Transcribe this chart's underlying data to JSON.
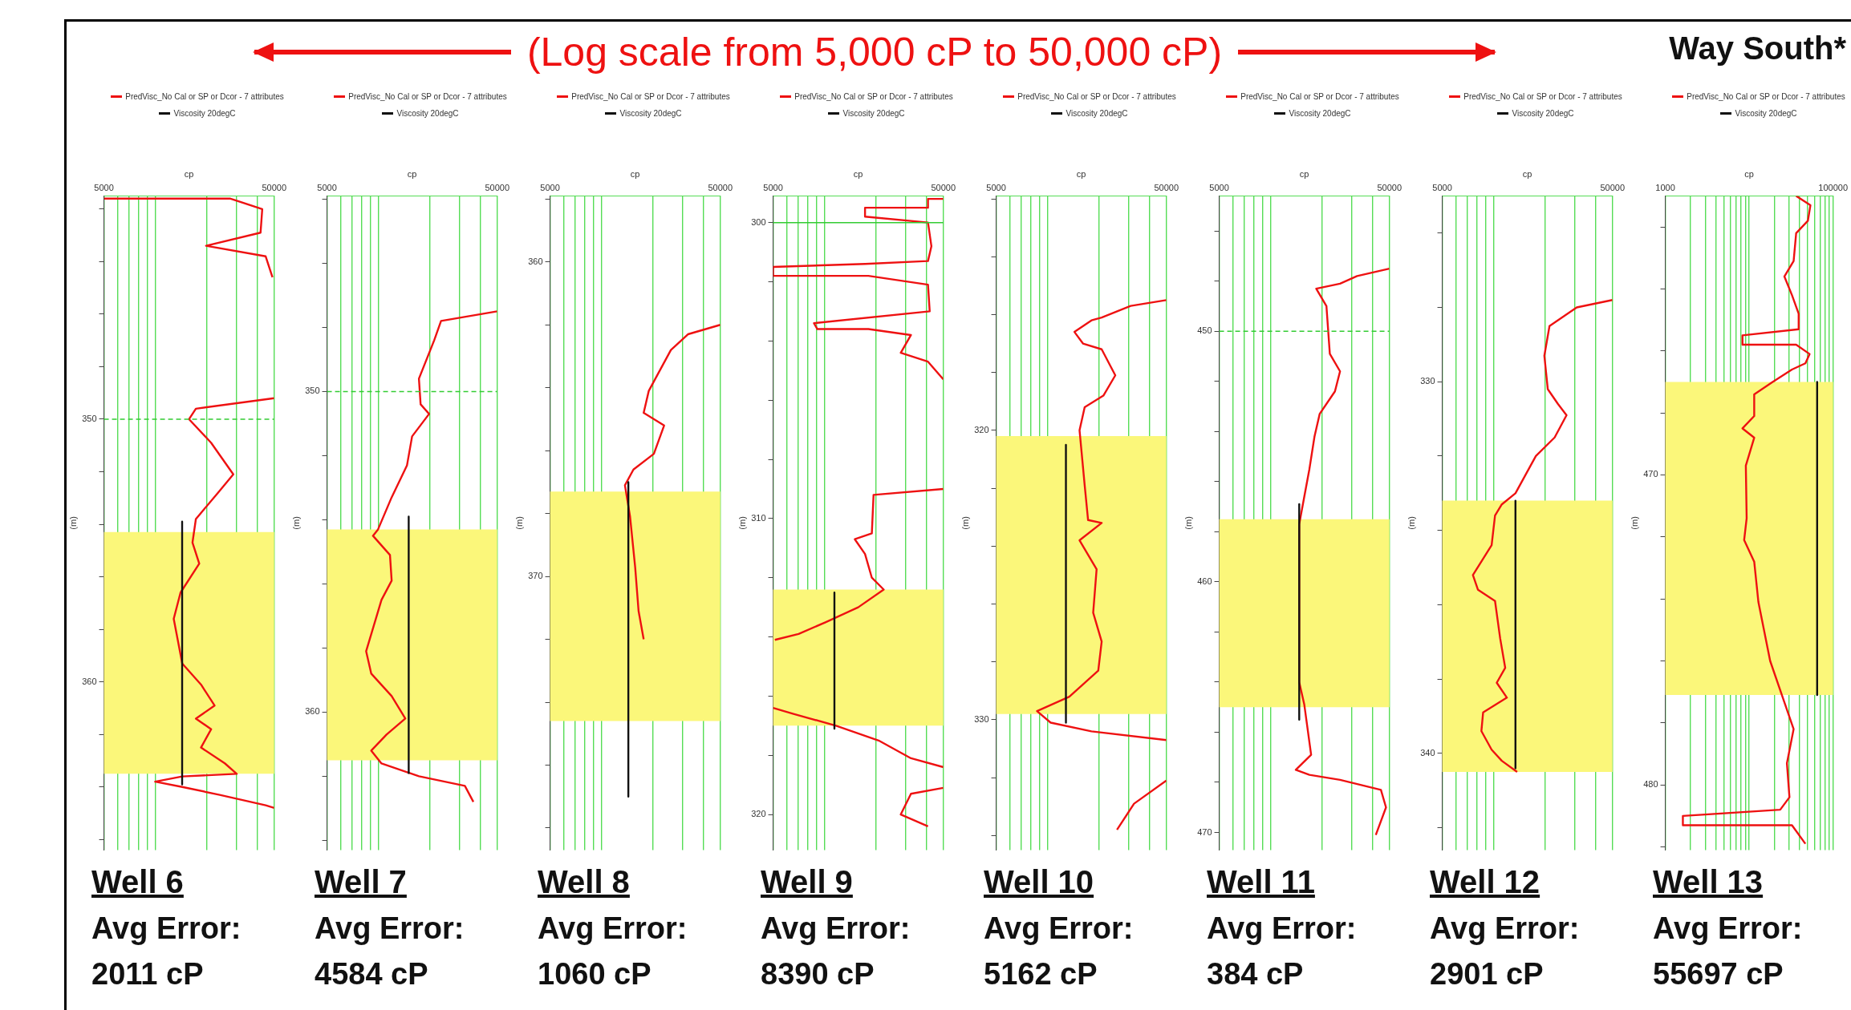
{
  "chart_data": [
    {
      "type": "line",
      "title": "Well 6",
      "annotations": [
        "Avg Error:",
        "2011 cP",
        "(Log scale from 5,000 cP to 50,000 cP)"
      ],
      "xlabel": "cp",
      "ylabel": "(m)",
      "log": "x",
      "grid": "x",
      "legend": "top",
      "marker": "none",
      "xlim": [
        5000,
        50000
      ],
      "xticks": [
        5000,
        {
          "value": 6000,
          "label": null
        },
        {
          "value": 7000,
          "label": null
        },
        {
          "value": 8000,
          "label": null
        },
        {
          "value": 9000,
          "label": null
        },
        {
          "value": 10000,
          "label": null
        },
        {
          "value": 20000,
          "label": null
        },
        {
          "value": 30000,
          "label": null
        },
        {
          "value": 40000,
          "label": null
        },
        50000
      ],
      "ylim": [
        366.4,
        341.5
      ],
      "yticks": [
        {
          "value": 342,
          "label": null
        },
        {
          "value": 344,
          "label": null
        },
        {
          "value": 346,
          "label": null
        },
        {
          "value": 348,
          "label": null
        },
        350,
        {
          "value": 352,
          "label": null
        },
        {
          "value": 354,
          "label": null
        },
        {
          "value": 356,
          "label": null
        },
        {
          "value": 358,
          "label": null
        },
        360,
        {
          "value": 362,
          "label": null
        },
        {
          "value": 364,
          "label": null
        },
        {
          "value": 366,
          "label": null
        }
      ],
      "bands": [
        {
          "axis": "y",
          "from": 354.3,
          "to": 363.5,
          "color": "#fbf77a"
        }
      ],
      "ref_lines": [
        {
          "axis": "y",
          "value": 350,
          "color": "#33cc33",
          "line_style": "dashed"
        }
      ],
      "series": [
        {
          "name": "PredVisc_No Cal or SP or Dcor - 7 attributes",
          "color": "#ee1111",
          "x": [
            5000,
            27480,
            42560,
            41590,
            19900,
            44570,
            48870,
            null,
            50000,
            17340,
            15810,
            21330,
            28770,
            23390,
            17340,
            16560,
            18150,
            14090,
            12850,
            14420,
            18580,
            22330,
            17340,
            21330,
            18580,
            25640,
            30130,
            14420,
            10000,
            14420,
            23930,
            44570,
            50000
          ],
          "values": [
            341.6,
            341.6,
            342.0,
            342.9,
            343.4,
            343.8,
            344.6,
            null,
            349.2,
            349.6,
            350.0,
            350.9,
            352.1,
            352.8,
            353.8,
            354.7,
            355.5,
            356.6,
            357.6,
            359.3,
            360.1,
            360.9,
            361.4,
            361.8,
            362.5,
            363.1,
            363.5,
            363.6,
            363.8,
            364.0,
            364.3,
            364.7,
            364.8
          ]
        },
        {
          "name": "Viscosity 20degC",
          "color": "#111111",
          "x": [
            14400,
            14400
          ],
          "values": [
            353.9,
            363.9
          ]
        }
      ]
    },
    {
      "type": "line",
      "title": "Well 7",
      "annotations": [
        "Avg Error:",
        "4584 cP"
      ],
      "xlabel": "cp",
      "ylabel": "(m)",
      "log": "x",
      "grid": "x",
      "legend": "top",
      "marker": "none",
      "xlim": [
        5000,
        50000
      ],
      "xticks": [
        5000,
        {
          "value": 6000,
          "label": null
        },
        {
          "value": 7000,
          "label": null
        },
        {
          "value": 8000,
          "label": null
        },
        {
          "value": 9000,
          "label": null
        },
        {
          "value": 10000,
          "label": null
        },
        {
          "value": 20000,
          "label": null
        },
        {
          "value": 30000,
          "label": null
        },
        {
          "value": 40000,
          "label": null
        },
        50000
      ],
      "ylim": [
        364.3,
        343.9
      ],
      "yticks": [
        {
          "value": 344,
          "label": null
        },
        {
          "value": 346,
          "label": null
        },
        {
          "value": 348,
          "label": null
        },
        350,
        {
          "value": 352,
          "label": null
        },
        {
          "value": 354,
          "label": null
        },
        {
          "value": 356,
          "label": null
        },
        {
          "value": 358,
          "label": null
        },
        360,
        {
          "value": 362,
          "label": null
        },
        {
          "value": 364,
          "label": null
        }
      ],
      "bands": [
        {
          "axis": "y",
          "from": 354.3,
          "to": 361.5,
          "color": "#fbf77a"
        }
      ],
      "ref_lines": [
        {
          "axis": "y",
          "value": 350,
          "color": "#33cc33",
          "line_style": "dashed"
        }
      ],
      "series": [
        {
          "name": "PredVisc_No Cal or SP or Dcor - 7 attributes",
          "color": "#ee1111",
          "x": [
            50000,
            23390,
            21330,
            17340,
            17740,
            19900,
            15810,
            14760,
            11990,
            9976,
            9310,
            11720,
            11990,
            10450,
            8490,
            9100,
            11990,
            14420,
            11190,
            9100,
            10450,
            17340,
            32280,
            36220
          ],
          "values": [
            347.5,
            347.8,
            348.4,
            349.6,
            350.4,
            350.7,
            351.4,
            352.3,
            353.3,
            354.3,
            354.5,
            355.1,
            355.9,
            356.5,
            358.1,
            358.8,
            359.5,
            360.2,
            360.7,
            361.2,
            361.6,
            362.0,
            362.3,
            362.8
          ]
        },
        {
          "name": "Viscosity 20degC",
          "color": "#111111",
          "x": [
            15100,
            15100
          ],
          "values": [
            353.9,
            361.9
          ]
        }
      ]
    },
    {
      "type": "line",
      "title": "Well 8",
      "annotations": [
        "Avg Error:",
        "1060 cP"
      ],
      "xlabel": "cp",
      "ylabel": "(m)",
      "log": "x",
      "grid": "x",
      "legend": "top",
      "marker": "none",
      "xlim": [
        5000,
        50000
      ],
      "xticks": [
        5000,
        {
          "value": 6000,
          "label": null
        },
        {
          "value": 7000,
          "label": null
        },
        {
          "value": 8000,
          "label": null
        },
        {
          "value": 9000,
          "label": null
        },
        {
          "value": 10000,
          "label": null
        },
        {
          "value": 20000,
          "label": null
        },
        {
          "value": 30000,
          "label": null
        },
        {
          "value": 40000,
          "label": null
        },
        50000
      ],
      "ylim": [
        378.7,
        357.9
      ],
      "yticks": [
        {
          "value": 358,
          "label": null
        },
        360,
        {
          "value": 362,
          "label": null
        },
        {
          "value": 364,
          "label": null
        },
        {
          "value": 366,
          "label": null
        },
        {
          "value": 368,
          "label": null
        },
        370,
        {
          "value": 372,
          "label": null
        },
        {
          "value": 374,
          "label": null
        },
        {
          "value": 376,
          "label": null
        },
        {
          "value": 378,
          "label": null
        }
      ],
      "bands": [
        {
          "axis": "y",
          "from": 367.3,
          "to": 374.6,
          "color": "#fbf77a"
        }
      ],
      "series": [
        {
          "name": "PredVisc_No Cal or SP or Dcor - 7 attributes",
          "color": "#ee1111",
          "x": [
            50000,
            32280,
            25640,
            19010,
            17740,
            23390,
            20370,
            15450,
            13770,
            14760,
            15810,
            16560,
            17740
          ],
          "values": [
            362.0,
            362.3,
            362.8,
            364.1,
            364.8,
            365.2,
            366.1,
            366.6,
            367.1,
            368.1,
            369.7,
            371.1,
            372.0
          ]
        },
        {
          "name": "Viscosity 20degC",
          "color": "#111111",
          "x": [
            14420,
            14420
          ],
          "values": [
            367.0,
            377.0
          ]
        }
      ]
    },
    {
      "type": "line",
      "title": "Well 9",
      "annotations": [
        "Avg Error:",
        "8390 cP"
      ],
      "xlabel": "cp",
      "ylabel": "(m)",
      "log": "x",
      "grid": "x",
      "legend": "top",
      "marker": "none",
      "xlim": [
        5000,
        50000
      ],
      "xticks": [
        5000,
        {
          "value": 6000,
          "label": null
        },
        {
          "value": 7000,
          "label": null
        },
        {
          "value": 8000,
          "label": null
        },
        {
          "value": 9000,
          "label": null
        },
        {
          "value": 10000,
          "label": null
        },
        {
          "value": 20000,
          "label": null
        },
        {
          "value": 30000,
          "label": null
        },
        {
          "value": 40000,
          "label": null
        },
        50000
      ],
      "ylim": [
        321.2,
        299.1
      ],
      "yticks": [
        300,
        {
          "value": 302,
          "label": null
        },
        {
          "value": 304,
          "label": null
        },
        {
          "value": 306,
          "label": null
        },
        {
          "value": 308,
          "label": null
        },
        310,
        {
          "value": 312,
          "label": null
        },
        {
          "value": 314,
          "label": null
        },
        {
          "value": 316,
          "label": null
        },
        {
          "value": 318,
          "label": null
        },
        320
      ],
      "bands": [
        {
          "axis": "y",
          "from": 312.4,
          "to": 317.0,
          "color": "#fbf77a"
        }
      ],
      "ref_lines": [
        {
          "axis": "y",
          "value": 300,
          "color": "#33cc33",
          "line_style": "solid"
        }
      ],
      "series": [
        {
          "name": "PredVisc_No Cal or SP or Dcor - 7 attributes",
          "color": "#ee1111",
          "x": [
            50000,
            40640,
            40640,
            17340,
            17340,
            40640,
            42560,
            40640,
            17340,
            5000,
            5000,
            18150,
            40640,
            41590,
            8690,
            9100,
            18150,
            32280,
            28120,
            40640,
            50000,
            null,
            50000,
            19460,
            19010,
            15100,
            17340,
            19010,
            22330,
            15810,
            10210,
            7060,
            5120,
            null,
            5000,
            6590,
            11720,
            20840,
            32280,
            50000,
            null,
            50000,
            32280,
            28120,
            40640
          ],
          "values": [
            299.2,
            299.2,
            299.5,
            299.5,
            299.8,
            300.0,
            300.8,
            301.3,
            301.4,
            301.5,
            301.8,
            301.8,
            302.1,
            303.0,
            303.4,
            303.6,
            303.6,
            303.8,
            304.4,
            304.7,
            305.3,
            null,
            309.0,
            309.2,
            310.5,
            310.7,
            311.2,
            312.0,
            312.4,
            313.0,
            313.5,
            313.9,
            314.1,
            null,
            316.4,
            316.6,
            317.0,
            317.5,
            318.1,
            318.4,
            null,
            319.1,
            319.3,
            320.0,
            320.4
          ]
        },
        {
          "name": "Viscosity 20degC",
          "color": "#111111",
          "x": [
            11460,
            11460
          ],
          "values": [
            312.5,
            317.1
          ]
        }
      ]
    },
    {
      "type": "line",
      "title": "Well 10",
      "annotations": [
        "Avg Error:",
        "5162 cP"
      ],
      "xlabel": "cp",
      "ylabel": "(m)",
      "log": "x",
      "grid": "x",
      "legend": "top",
      "marker": "none",
      "xlim": [
        5000,
        50000
      ],
      "xticks": [
        5000,
        {
          "value": 6000,
          "label": null
        },
        {
          "value": 7000,
          "label": null
        },
        {
          "value": 8000,
          "label": null
        },
        {
          "value": 9000,
          "label": null
        },
        {
          "value": 10000,
          "label": null
        },
        {
          "value": 20000,
          "label": null
        },
        {
          "value": 30000,
          "label": null
        },
        {
          "value": 40000,
          "label": null
        },
        50000
      ],
      "ylim": [
        334.5,
        311.9
      ],
      "yticks": [
        {
          "value": 312,
          "label": null
        },
        {
          "value": 314,
          "label": null
        },
        {
          "value": 316,
          "label": null
        },
        {
          "value": 318,
          "label": null
        },
        320,
        {
          "value": 322,
          "label": null
        },
        {
          "value": 324,
          "label": null
        },
        {
          "value": 326,
          "label": null
        },
        {
          "value": 328,
          "label": null
        },
        330,
        {
          "value": 332,
          "label": null
        },
        {
          "value": 334,
          "label": null
        }
      ],
      "bands": [
        {
          "axis": "y",
          "from": 320.2,
          "to": 329.8,
          "color": "#fbf77a"
        }
      ],
      "series": [
        {
          "name": "PredVisc_No Cal or SP or Dcor - 7 attributes",
          "color": "#ee1111",
          "x": [
            50000,
            30840,
            20840,
            18150,
            14420,
            16180,
            20840,
            25060,
            21330,
            16560,
            15450,
            16560,
            17340,
            20840,
            15450,
            19460,
            18580,
            20840,
            19900,
            13460,
            8690,
            10450,
            18150,
            50000,
            null,
            50000,
            32280,
            25640
          ],
          "values": [
            315.5,
            315.7,
            316.1,
            316.2,
            316.6,
            317.0,
            317.2,
            318.1,
            318.8,
            319.2,
            320.0,
            321.9,
            323.1,
            323.2,
            323.8,
            324.8,
            326.3,
            327.3,
            328.3,
            329.2,
            329.7,
            330.1,
            330.4,
            330.7,
            null,
            332.1,
            332.9,
            333.8
          ]
        },
        {
          "name": "Viscosity 20degC",
          "color": "#111111",
          "x": [
            12850,
            12850
          ],
          "values": [
            320.5,
            330.1
          ]
        }
      ]
    },
    {
      "type": "line",
      "title": "Well 11",
      "annotations": [
        "Avg Error:",
        "384 cP"
      ],
      "xlabel": "cp",
      "ylabel": "(m)",
      "log": "x",
      "grid": "x",
      "legend": "top",
      "marker": "none",
      "xlim": [
        5000,
        50000
      ],
      "xticks": [
        5000,
        {
          "value": 6000,
          "label": null
        },
        {
          "value": 7000,
          "label": null
        },
        {
          "value": 8000,
          "label": null
        },
        {
          "value": 9000,
          "label": null
        },
        {
          "value": 10000,
          "label": null
        },
        {
          "value": 20000,
          "label": null
        },
        {
          "value": 30000,
          "label": null
        },
        {
          "value": 40000,
          "label": null
        },
        50000
      ],
      "ylim": [
        470.7,
        444.6
      ],
      "yticks": [
        {
          "value": 446,
          "label": null
        },
        {
          "value": 448,
          "label": null
        },
        450,
        {
          "value": 452,
          "label": null
        },
        {
          "value": 454,
          "label": null
        },
        {
          "value": 456,
          "label": null
        },
        {
          "value": 458,
          "label": null
        },
        460,
        {
          "value": 462,
          "label": null
        },
        {
          "value": 464,
          "label": null
        },
        {
          "value": 466,
          "label": null
        },
        {
          "value": 468,
          "label": null
        },
        470
      ],
      "bands": [
        {
          "axis": "y",
          "from": 457.5,
          "to": 465.0,
          "color": "#fbf77a"
        }
      ],
      "ref_lines": [
        {
          "axis": "y",
          "value": 450,
          "color": "#33cc33",
          "line_style": "dashed"
        }
      ],
      "series": [
        {
          "name": "PredVisc_No Cal or SP or Dcor - 7 attributes",
          "color": "#ee1111",
          "x": [
            50000,
            32280,
            25640,
            18580,
            21330,
            22330,
            25640,
            23930,
            19460,
            18150,
            16940,
            15810,
            14760,
            14760,
            15810,
            17340,
            14090,
            16940,
            25640,
            44570,
            47750,
            41590
          ],
          "values": [
            447.5,
            447.8,
            448.1,
            448.3,
            449.0,
            450.9,
            451.6,
            452.4,
            453.3,
            454.2,
            455.5,
            456.6,
            457.7,
            464.0,
            464.9,
            466.9,
            467.5,
            467.7,
            467.9,
            468.3,
            469.0,
            470.1
          ]
        },
        {
          "name": "Viscosity 20degC",
          "color": "#111111",
          "x": [
            14760,
            14760
          ],
          "values": [
            456.9,
            465.5
          ]
        }
      ]
    },
    {
      "type": "line",
      "title": "Well 12",
      "annotations": [
        "Avg Error:",
        "2901 cP"
      ],
      "xlabel": "cp",
      "ylabel": "(m)",
      "log": "x",
      "grid": "x",
      "legend": "top",
      "marker": "none",
      "xlim": [
        5000,
        50000
      ],
      "xticks": [
        5000,
        {
          "value": 6000,
          "label": null
        },
        {
          "value": 7000,
          "label": null
        },
        {
          "value": 8000,
          "label": null
        },
        {
          "value": 9000,
          "label": null
        },
        {
          "value": 10000,
          "label": null
        },
        {
          "value": 20000,
          "label": null
        },
        {
          "value": 30000,
          "label": null
        },
        {
          "value": 40000,
          "label": null
        },
        50000
      ],
      "ylim": [
        342.6,
        325.0
      ],
      "yticks": [
        {
          "value": 326,
          "label": null
        },
        {
          "value": 328,
          "label": null
        },
        330,
        {
          "value": 332,
          "label": null
        },
        {
          "value": 334,
          "label": null
        },
        {
          "value": 336,
          "label": null
        },
        {
          "value": 338,
          "label": null
        },
        340,
        {
          "value": 342,
          "label": null
        }
      ],
      "bands": [
        {
          "axis": "y",
          "from": 333.2,
          "to": 340.5,
          "color": "#fbf77a"
        }
      ],
      "series": [
        {
          "name": "PredVisc_No Cal or SP or Dcor - 7 attributes",
          "color": "#ee1111",
          "x": [
            50000,
            30840,
            21330,
            19900,
            20840,
            23930,
            26860,
            22870,
            17740,
            15450,
            13460,
            11190,
            10210,
            9750,
            7570,
            8110,
            10210,
            10940,
            11720,
            10450,
            11990,
            8690,
            8490,
            9750,
            11190,
            13770
          ],
          "values": [
            327.8,
            328.0,
            328.5,
            329.3,
            330.2,
            330.6,
            330.9,
            331.5,
            332.0,
            332.5,
            333.0,
            333.3,
            333.6,
            334.4,
            335.2,
            335.6,
            335.9,
            336.9,
            337.7,
            338.1,
            338.5,
            338.9,
            339.4,
            339.9,
            340.2,
            340.5
          ]
        },
        {
          "name": "Viscosity 20degC",
          "color": "#111111",
          "x": [
            13460,
            13460
          ],
          "values": [
            333.2,
            340.4
          ]
        }
      ]
    },
    {
      "type": "line",
      "title": "Well 13",
      "annotations": [
        "Avg Error:",
        "55697 cP",
        "Way South*"
      ],
      "xlabel": "cp",
      "ylabel": "(m)",
      "log": "x",
      "grid": "x",
      "legend": "top",
      "marker": "none",
      "xlim": [
        1000,
        100000
      ],
      "xticks": [
        1000,
        {
          "value": 2000,
          "label": null
        },
        {
          "value": 3000,
          "label": null
        },
        {
          "value": 4000,
          "label": null
        },
        {
          "value": 5000,
          "label": null
        },
        {
          "value": 6000,
          "label": null
        },
        {
          "value": 7000,
          "label": null
        },
        {
          "value": 8000,
          "label": null
        },
        {
          "value": 9000,
          "label": null
        },
        {
          "value": 10000,
          "label": null
        },
        {
          "value": 20000,
          "label": null
        },
        {
          "value": 30000,
          "label": null
        },
        {
          "value": 40000,
          "label": null
        },
        {
          "value": 50000,
          "label": null
        },
        {
          "value": 60000,
          "label": null
        },
        {
          "value": 70000,
          "label": null
        },
        {
          "value": 80000,
          "label": null
        },
        {
          "value": 90000,
          "label": null
        },
        100000
      ],
      "ylim": [
        482.1,
        461.0
      ],
      "yticks": [
        {
          "value": 462,
          "label": null
        },
        {
          "value": 464,
          "label": null
        },
        {
          "value": 466,
          "label": null
        },
        {
          "value": 468,
          "label": null
        },
        470,
        {
          "value": 472,
          "label": null
        },
        {
          "value": 474,
          "label": null
        },
        {
          "value": 476,
          "label": null
        },
        {
          "value": 478,
          "label": null
        },
        480,
        {
          "value": 482,
          "label": null
        }
      ],
      "bands": [
        {
          "axis": "y",
          "from": 467.0,
          "to": 477.1,
          "color": "#fbf77a"
        }
      ],
      "series": [
        {
          "name": "PredVisc_No Cal or SP or Dcor - 7 attributes",
          "color": "#ee1111",
          "x": [
            36310,
            53700,
            50120,
            36310,
            33880,
            26300,
            32360,
            38900,
            38900,
            8320,
            8320,
            36310,
            52480,
            46770,
            32360,
            19050,
            11480,
            11480,
            8320,
            11480,
            9120,
            9330,
            8710,
            11480,
            12880,
            17780,
            24550,
            33880,
            28180,
            30200,
            23440,
            1620,
            1620,
            32360,
            46770
          ],
          "values": [
            461.0,
            461.3,
            461.8,
            462.2,
            463.1,
            463.6,
            464.2,
            464.8,
            465.3,
            465.5,
            465.8,
            465.8,
            466.1,
            466.4,
            466.6,
            467.0,
            467.4,
            468.1,
            468.5,
            468.8,
            469.7,
            471.4,
            472.1,
            472.8,
            474.1,
            476.0,
            477.1,
            478.2,
            479.3,
            480.4,
            480.8,
            481.0,
            481.3,
            481.3,
            481.9
          ]
        },
        {
          "name": "Viscosity 20degC",
          "color": "#111111",
          "x": [
            64600,
            64600
          ],
          "values": [
            467.0,
            477.1
          ]
        }
      ]
    }
  ]
}
